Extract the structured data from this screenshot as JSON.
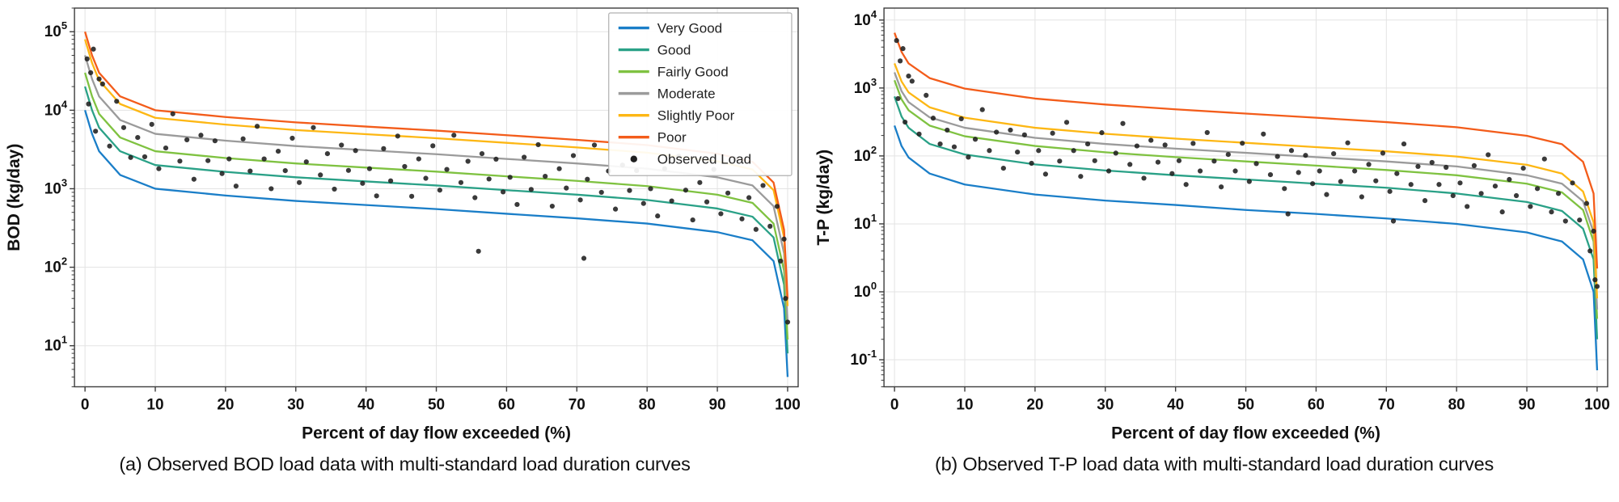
{
  "captions": {
    "a": "(a) Observed BOD load data with multi-standard load duration curves",
    "b": "(b) Observed T-P load data with multi-standard load duration curves"
  },
  "colors": {
    "very_good": "#1a7ec8",
    "good": "#2aa187",
    "fairly_good": "#7fc241",
    "moderate": "#9b9b9b",
    "slightly_poor": "#fdb714",
    "poor": "#f35c1a",
    "observed": "#1f1f1f",
    "grid": "#e3e3e3",
    "spine": "#3c3c3c",
    "text": "#111111"
  },
  "chart_data": [
    {
      "type": "line",
      "title": "",
      "xlabel": "Percent of day flow exceeded (%)",
      "ylabel": "BOD (kg/day)",
      "xlim": [
        0,
        100
      ],
      "ylim": [
        3,
        200000
      ],
      "xticks": [
        0,
        10,
        20,
        30,
        40,
        50,
        60,
        70,
        80,
        90,
        100
      ],
      "ytick_exponents": [
        1,
        2,
        3,
        4,
        5
      ],
      "grid": true,
      "show_legend": true,
      "legend_position": "upper right",
      "observed_label": "Observed Load",
      "x": [
        0,
        1,
        2,
        5,
        10,
        20,
        30,
        40,
        50,
        60,
        70,
        80,
        90,
        95,
        98,
        99.5,
        100
      ],
      "series": [
        {
          "name": "Very Good",
          "color": "#1a7ec8",
          "values": [
            10000,
            5000,
            3000,
            1500,
            1000,
            820,
            700,
            620,
            550,
            480,
            420,
            360,
            280,
            220,
            120,
            30,
            4
          ]
        },
        {
          "name": "Good",
          "color": "#2aa187",
          "values": [
            20000,
            10000,
            6000,
            3000,
            2000,
            1640,
            1400,
            1240,
            1100,
            960,
            840,
            720,
            560,
            440,
            240,
            60,
            8
          ]
        },
        {
          "name": "Fairly Good",
          "color": "#7fc241",
          "values": [
            30000,
            15000,
            9000,
            4500,
            3000,
            2460,
            2100,
            1860,
            1650,
            1440,
            1260,
            1080,
            840,
            660,
            360,
            90,
            12
          ]
        },
        {
          "name": "Moderate",
          "color": "#9b9b9b",
          "values": [
            50000,
            25000,
            15000,
            7500,
            5000,
            4100,
            3500,
            3100,
            2750,
            2400,
            2100,
            1800,
            1400,
            1100,
            600,
            150,
            20
          ]
        },
        {
          "name": "Slightly Poor",
          "color": "#fdb714",
          "values": [
            80000,
            40000,
            24000,
            12000,
            8000,
            6560,
            5600,
            4960,
            4400,
            3840,
            3360,
            2880,
            2240,
            1760,
            960,
            240,
            32
          ]
        },
        {
          "name": "Poor",
          "color": "#f35c1a",
          "values": [
            100000,
            50000,
            30000,
            15000,
            10000,
            8200,
            7000,
            6200,
            5500,
            4800,
            4200,
            3600,
            2800,
            2200,
            1200,
            300,
            40
          ]
        }
      ],
      "scatter": {
        "name": "Observed Load",
        "color": "#1f1f1f",
        "x": [
          0.3,
          0.8,
          1.2,
          2,
          0.5,
          1.5,
          2.5,
          3.5,
          4.5,
          5.5,
          6.5,
          7.5,
          8.5,
          9.5,
          10.5,
          11.5,
          12.5,
          13.5,
          14.5,
          15.5,
          16.5,
          17.5,
          18.5,
          19.5,
          20.5,
          21.5,
          22.5,
          23.5,
          24.5,
          25.5,
          26.5,
          27.5,
          28.5,
          29.5,
          30.5,
          31.5,
          32.5,
          33.5,
          34.5,
          35.5,
          36.5,
          37.5,
          38.5,
          39.5,
          40.5,
          41.5,
          42.5,
          43.5,
          44.5,
          45.5,
          46.5,
          47.5,
          48.5,
          49.5,
          50.5,
          51.5,
          52.5,
          53.5,
          54.5,
          55.5,
          56.5,
          57.5,
          58.5,
          59.5,
          60.5,
          61.5,
          62.5,
          63.5,
          64.5,
          65.5,
          66.5,
          67.5,
          68.5,
          69.5,
          70.5,
          71.5,
          72.5,
          73.5,
          74.5,
          75.5,
          76.5,
          77.5,
          78.5,
          79.5,
          80.5,
          81.5,
          82.5,
          83.5,
          84.5,
          85.5,
          86.5,
          87.5,
          88.5,
          89.5,
          90.5,
          91.5,
          92.5,
          93.5,
          94.5,
          95.5,
          96.5,
          97.5,
          98.5,
          99.5,
          56,
          71,
          99,
          99.7,
          100
        ],
        "y": [
          45000,
          30000,
          60000,
          25000,
          12000,
          5400,
          21600,
          3500,
          13000,
          6000,
          2500,
          4500,
          2550,
          6600,
          1800,
          3300,
          9000,
          2250,
          4200,
          1320,
          4800,
          2280,
          4080,
          1560,
          2400,
          1080,
          4320,
          1680,
          6240,
          2400,
          1000,
          3000,
          1700,
          4400,
          1200,
          2200,
          6000,
          1500,
          2800,
          990,
          3600,
          1710,
          3060,
          1170,
          1800,
          810,
          3240,
          1260,
          4680,
          1920,
          800,
          2400,
          1360,
          3520,
          960,
          1760,
          4800,
          1200,
          2240,
          770,
          2800,
          1330,
          2380,
          910,
          1400,
          630,
          2520,
          980,
          3640,
          1440,
          600,
          1800,
          1020,
          2640,
          720,
          1320,
          3600,
          900,
          1680,
          550,
          2000,
          950,
          1700,
          650,
          1000,
          450,
          1800,
          700,
          2600,
          960,
          400,
          1200,
          680,
          1760,
          480,
          880,
          2400,
          413,
          770,
          303,
          1100,
          333,
          595,
          228,
          160,
          130,
          120,
          40,
          20
        ]
      }
    },
    {
      "type": "line",
      "title": "",
      "xlabel": "Percent of day flow exceeded (%)",
      "ylabel": "T-P (kg/day)",
      "xlim": [
        0,
        100
      ],
      "ylim": [
        0.04,
        15000
      ],
      "xticks": [
        0,
        10,
        20,
        30,
        40,
        50,
        60,
        70,
        80,
        90,
        100
      ],
      "ytick_exponents": [
        -1,
        0,
        1,
        2,
        3,
        4
      ],
      "grid": true,
      "show_legend": false,
      "legend_position": "none",
      "observed_label": "Observed Load",
      "x": [
        0,
        1,
        2,
        5,
        10,
        20,
        30,
        40,
        50,
        60,
        70,
        80,
        90,
        95,
        98,
        99.5,
        100
      ],
      "series": [
        {
          "name": "Very Good",
          "color": "#1a7ec8",
          "values": [
            280,
            140,
            95,
            55,
            38,
            27,
            22,
            19,
            16,
            14,
            12,
            10,
            7.5,
            5.5,
            3,
            1,
            0.07
          ]
        },
        {
          "name": "Good",
          "color": "#2aa187",
          "values": [
            750,
            380,
            260,
            150,
            105,
            75,
            61,
            52,
            45,
            39,
            34,
            28,
            21,
            15.5,
            8.5,
            3,
            0.2
          ]
        },
        {
          "name": "Fairly Good",
          "color": "#7fc241",
          "values": [
            1300,
            680,
            470,
            280,
            195,
            140,
            113,
            96,
            83,
            72,
            62,
            52,
            39,
            29,
            16,
            5.5,
            0.4
          ]
        },
        {
          "name": "Moderate",
          "color": "#9b9b9b",
          "values": [
            1700,
            900,
            620,
            370,
            260,
            185,
            150,
            128,
            111,
            96,
            83,
            70,
            52,
            39,
            21.5,
            7.5,
            0.55
          ]
        },
        {
          "name": "Slightly Poor",
          "color": "#fdb714",
          "values": [
            2300,
            1250,
            860,
            520,
            365,
            260,
            212,
            180,
            156,
            135,
            117,
            98,
            74,
            55,
            30,
            10.5,
            0.8
          ]
        },
        {
          "name": "Poor",
          "color": "#f35c1a",
          "values": [
            6500,
            3400,
            2300,
            1400,
            980,
            700,
            570,
            485,
            420,
            365,
            315,
            265,
            198,
            149,
            82,
            28,
            2.2
          ]
        }
      ],
      "scatter": {
        "name": "Observed Load",
        "color": "#1f1f1f",
        "x": [
          0.3,
          0.8,
          1.2,
          2,
          0.5,
          1.5,
          2.5,
          3.5,
          4.5,
          5.5,
          6.5,
          7.5,
          8.5,
          9.5,
          10.5,
          11.5,
          12.5,
          13.5,
          14.5,
          15.5,
          16.5,
          17.5,
          18.5,
          19.5,
          20.5,
          21.5,
          22.5,
          23.5,
          24.5,
          25.5,
          26.5,
          27.5,
          28.5,
          29.5,
          30.5,
          31.5,
          32.5,
          33.5,
          34.5,
          35.5,
          36.5,
          37.5,
          38.5,
          39.5,
          40.5,
          41.5,
          42.5,
          43.5,
          44.5,
          45.5,
          46.5,
          47.5,
          48.5,
          49.5,
          50.5,
          51.5,
          52.5,
          53.5,
          54.5,
          55.5,
          56.5,
          57.5,
          58.5,
          59.5,
          60.5,
          61.5,
          62.5,
          63.5,
          64.5,
          65.5,
          66.5,
          67.5,
          68.5,
          69.5,
          70.5,
          71.5,
          72.5,
          73.5,
          74.5,
          75.5,
          76.5,
          77.5,
          78.5,
          79.5,
          80.5,
          81.5,
          82.5,
          83.5,
          84.5,
          85.5,
          86.5,
          87.5,
          88.5,
          89.5,
          90.5,
          91.5,
          92.5,
          93.5,
          94.5,
          95.5,
          96.5,
          97.5,
          98.5,
          99.5,
          56,
          71,
          99,
          99.7,
          100
        ],
        "y": [
          5000,
          2500,
          3800,
          1500,
          700,
          315,
          1260,
          210,
          780,
          360,
          150,
          240,
          136,
          352,
          96,
          176,
          480,
          120,
          224,
          66,
          240,
          114,
          204,
          78,
          120,
          54,
          216,
          84,
          312,
          120,
          50,
          150,
          85,
          220,
          60,
          110,
          300,
          75,
          140,
          47,
          170,
          81,
          145,
          55,
          85,
          38,
          153,
          60,
          221,
          84,
          35,
          105,
          60,
          154,
          42,
          77,
          210,
          53,
          98,
          33,
          120,
          57,
          102,
          39,
          60,
          27,
          108,
          42,
          156,
          60,
          25,
          75,
          43,
          110,
          30,
          55,
          150,
          38,
          70,
          22,
          80,
          38,
          68,
          26,
          40,
          18,
          72,
          28,
          104,
          36,
          15,
          45,
          26,
          66,
          18,
          33,
          90,
          15,
          28,
          11,
          40,
          11.4,
          20,
          7.8,
          14,
          11,
          4,
          1.5,
          1.2
        ]
      }
    }
  ]
}
